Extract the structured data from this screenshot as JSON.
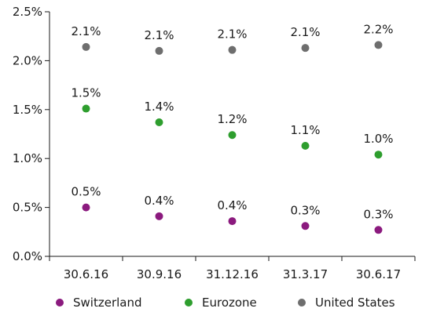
{
  "chart_data": {
    "type": "scatter",
    "title": "",
    "xlabel": "",
    "ylabel": "",
    "categories": [
      "30.6.16",
      "30.9.16",
      "31.12.16",
      "31.3.17",
      "30.6.17"
    ],
    "y_ticks": [
      "0.0%",
      "0.5%",
      "1.0%",
      "1.5%",
      "2.0%",
      "2.5%"
    ],
    "ylim": [
      0,
      2.5
    ],
    "grid": false,
    "legend_position": "bottom",
    "series": [
      {
        "name": "Switzerland",
        "color": "#8B1A7E",
        "values": [
          0.5,
          0.41,
          0.36,
          0.31,
          0.27
        ],
        "labels": [
          "0.5%",
          "0.4%",
          "0.4%",
          "0.3%",
          "0.3%"
        ]
      },
      {
        "name": "Eurozone",
        "color": "#2E9E2E",
        "values": [
          1.51,
          1.37,
          1.24,
          1.13,
          1.04
        ],
        "labels": [
          "1.5%",
          "1.4%",
          "1.2%",
          "1.1%",
          "1.0%"
        ]
      },
      {
        "name": "United States",
        "color": "#6E6E6E",
        "values": [
          2.14,
          2.1,
          2.11,
          2.13,
          2.16
        ],
        "labels": [
          "2.1%",
          "2.1%",
          "2.1%",
          "2.1%",
          "2.2%"
        ]
      }
    ]
  }
}
